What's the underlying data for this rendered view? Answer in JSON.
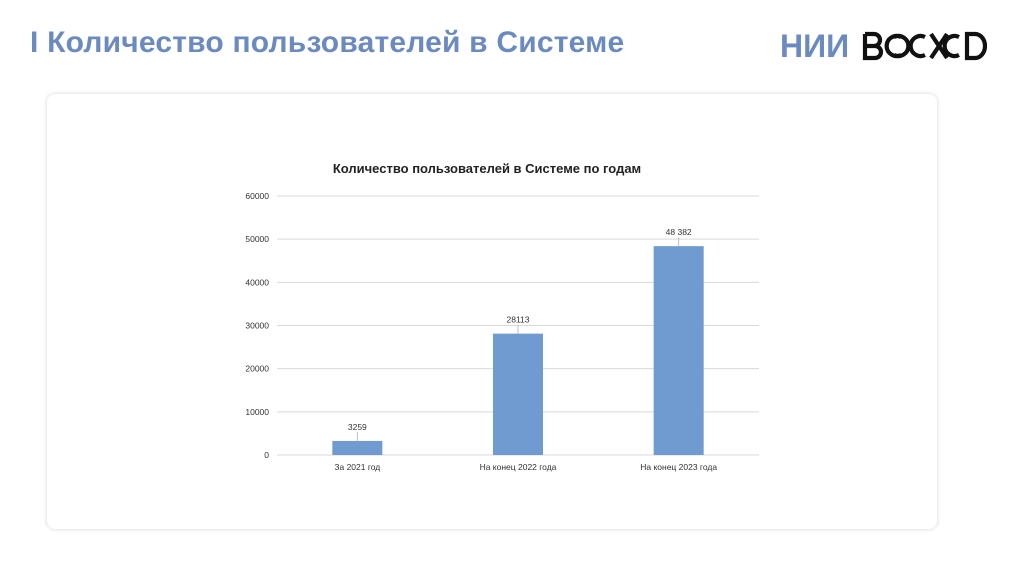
{
  "slide": {
    "title": "І Количество пользователей в Системе"
  },
  "logo": {
    "prefix": "НИИ",
    "wordmark": "ВОСХОД"
  },
  "colors": {
    "accent": "#6b8bc0",
    "bar": "#6f9bd1",
    "grid": "#d9d9d9"
  },
  "chart_data": {
    "type": "bar",
    "title": "Количество пользователей в Системе по годам",
    "categories": [
      "За 2021 год",
      "На конец 2022 года",
      "На конец 2023 года"
    ],
    "values": [
      3259,
      28113,
      48382
    ],
    "data_labels": [
      "3259",
      "28113",
      "48 382"
    ],
    "ylim": [
      0,
      60000
    ],
    "yticks": [
      0,
      10000,
      20000,
      30000,
      40000,
      50000,
      60000
    ],
    "ytick_labels": [
      "0",
      "10000",
      "20000",
      "30000",
      "40000",
      "50000",
      "60000"
    ],
    "grid": true,
    "legend": "none",
    "xlabel": "",
    "ylabel": ""
  }
}
